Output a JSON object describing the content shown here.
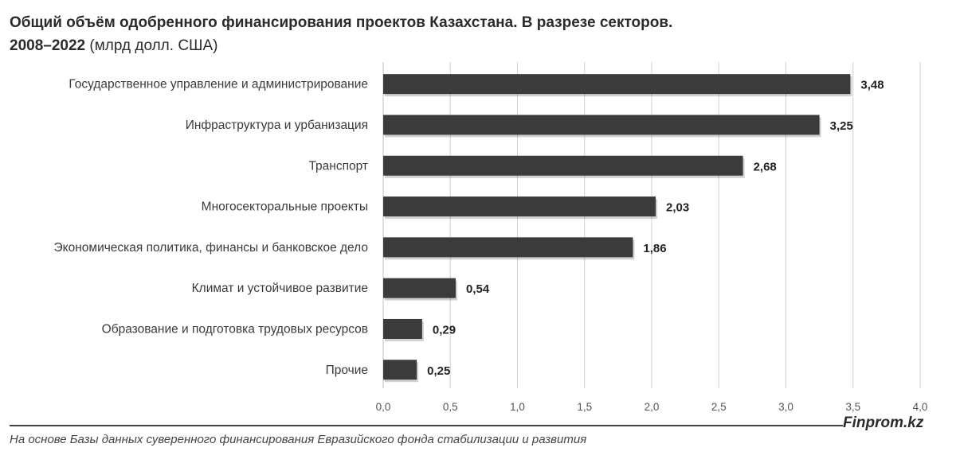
{
  "title": {
    "line1": "Общий объём одобренного финансирования проектов Казахстана. В разрезе секторов.",
    "line2_bold": "2008–2022",
    "line2_unit": " (млрд долл. США)"
  },
  "brand": "Finprom.kz",
  "source": "На основе Базы данных суверенного финансирования Евразийского фонда стабилизации и развития",
  "colors": {
    "bar": "#3b3b3b",
    "grid": "#d0d0d0",
    "axis": "#bdbdbd"
  },
  "chart_data": {
    "type": "bar",
    "orientation": "horizontal",
    "categories": [
      "Государственное управление и администрирование",
      "Инфраструктура и урбанизация",
      "Транспорт",
      "Многосекторальные проекты",
      "Экономическая политика, финансы и банковское дело",
      "Климат и устойчивое развитие",
      "Образование и подготовка трудовых ресурсов",
      "Прочие"
    ],
    "values": [
      3.48,
      3.25,
      2.68,
      2.03,
      1.86,
      0.54,
      0.29,
      0.25
    ],
    "value_labels": [
      "3,48",
      "3,25",
      "2,68",
      "2,03",
      "1,86",
      "0,54",
      "0,29",
      "0,25"
    ],
    "xlim": [
      0,
      4.0
    ],
    "xticks": [
      0,
      0.5,
      1.0,
      1.5,
      2.0,
      2.5,
      3.0,
      3.5,
      4.0
    ],
    "xtick_labels": [
      "0,0",
      "0,5",
      "1,0",
      "1,5",
      "2,0",
      "2,5",
      "3,0",
      "3,5",
      "4,0"
    ],
    "grid": "vertical",
    "xlabel": "",
    "ylabel": ""
  }
}
